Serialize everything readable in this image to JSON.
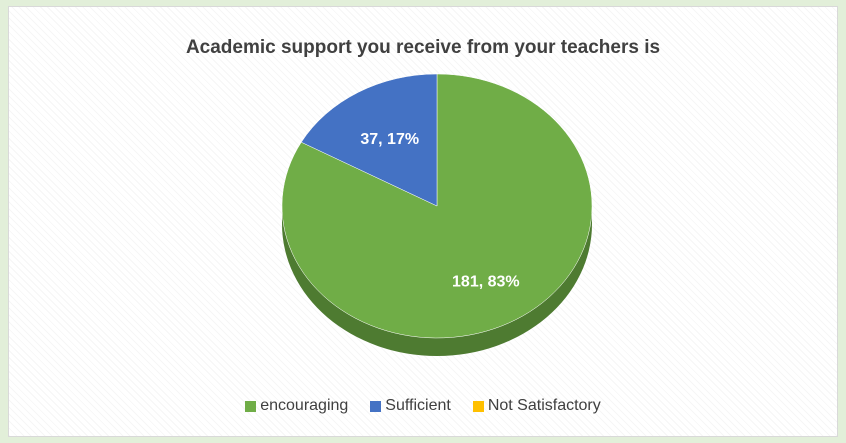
{
  "chart_data": {
    "type": "pie",
    "title": "Academic support you receive from your teachers is",
    "categories": [
      "encouraging",
      "Sufficient",
      "Not Satisfactory"
    ],
    "values": [
      181,
      37,
      0
    ],
    "percentages": [
      83,
      17,
      0
    ],
    "data_labels": [
      "181, 83%",
      "37, 17%",
      ""
    ],
    "colors": [
      "#70ad47",
      "#4472c4",
      "#ffc000"
    ],
    "side_colors": [
      "#4e7b31",
      "#2f5597",
      "#bf9000"
    ],
    "legend_position": "bottom",
    "style": "3d"
  }
}
